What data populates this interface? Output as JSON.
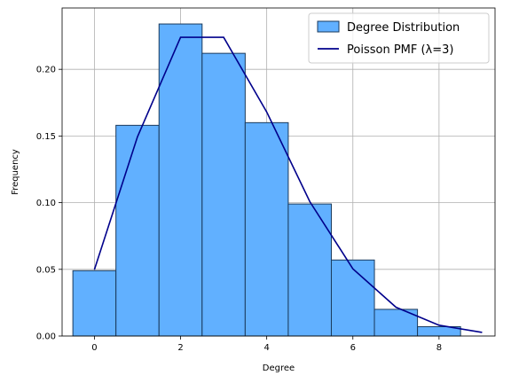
{
  "chart_data": {
    "type": "bar",
    "title": "",
    "xlabel": "Degree",
    "ylabel": "Frequency",
    "xlim": [
      -0.75,
      9.3
    ],
    "ylim": [
      0,
      0.246
    ],
    "grid": true,
    "legend_position": "top-right",
    "x_ticks": [
      0,
      2,
      4,
      6,
      8
    ],
    "x_tick_labels": [
      "0",
      "2",
      "4",
      "6",
      "8"
    ],
    "y_ticks": [
      0,
      0.05,
      0.1,
      0.15,
      0.2
    ],
    "y_tick_labels": [
      "0.00",
      "0.05",
      "0.10",
      "0.15",
      "0.20"
    ],
    "histogram": {
      "name": "Degree Distribution",
      "color": "#61b0ff",
      "edge_color": "#1a3a5c",
      "bin_width": 1,
      "bins": [
        {
          "center": 0,
          "value": 0.049
        },
        {
          "center": 1,
          "value": 0.158
        },
        {
          "center": 2,
          "value": 0.234
        },
        {
          "center": 3,
          "value": 0.212
        },
        {
          "center": 4,
          "value": 0.16
        },
        {
          "center": 5,
          "value": 0.099
        },
        {
          "center": 6,
          "value": 0.057
        },
        {
          "center": 7,
          "value": 0.02
        },
        {
          "center": 8,
          "value": 0.007
        }
      ]
    },
    "line": {
      "name": "Poisson PMF (λ=3)",
      "color": "#00008b",
      "x": [
        0,
        1,
        2,
        3,
        4,
        5,
        6,
        7,
        8,
        9
      ],
      "y": [
        0.0498,
        0.1494,
        0.224,
        0.224,
        0.168,
        0.1008,
        0.0504,
        0.0216,
        0.0081,
        0.0027
      ]
    }
  }
}
